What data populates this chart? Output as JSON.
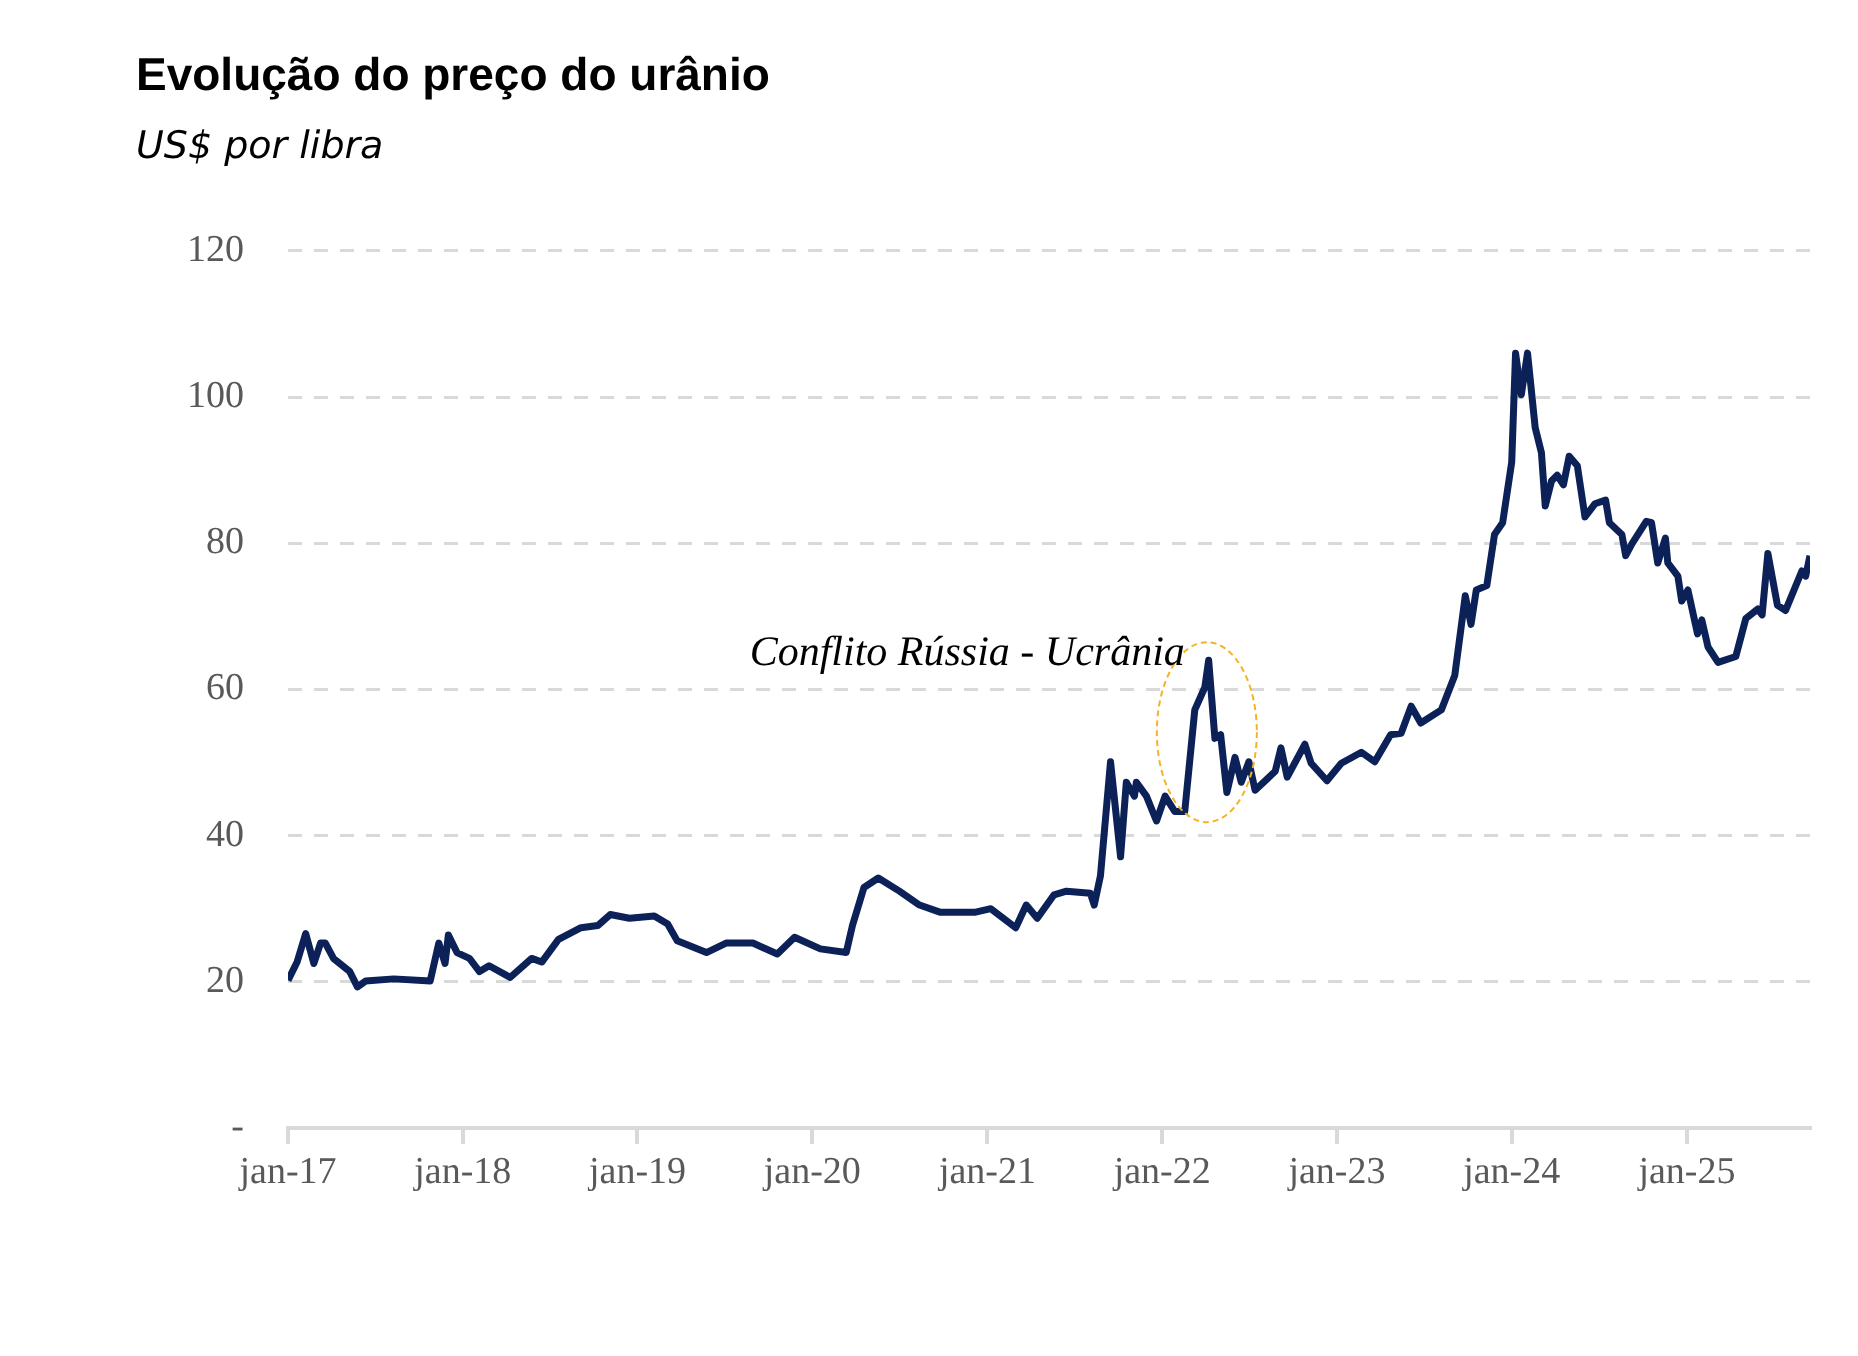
{
  "chart_data": {
    "type": "line",
    "title": "Evolução do preço do urânio",
    "subtitle": "US$ por libra",
    "x": [
      "2017-01-01",
      "2017-01-20",
      "2017-02-07",
      "2017-02-24",
      "2017-03-10",
      "2017-03-20",
      "2017-04-06",
      "2017-05-10",
      "2017-05-26",
      "2017-06-12",
      "2017-08-10",
      "2017-10-25",
      "2017-11-12",
      "2017-11-25",
      "2017-12-02",
      "2017-12-20",
      "2018-01-15",
      "2018-02-05",
      "2018-02-25",
      "2018-04-10",
      "2018-05-25",
      "2018-06-15",
      "2018-07-20",
      "2018-09-05",
      "2018-10-10",
      "2018-11-05",
      "2018-12-15",
      "2019-02-05",
      "2019-03-05",
      "2019-03-25",
      "2019-05-25",
      "2019-07-05",
      "2019-08-30",
      "2019-10-20",
      "2019-11-25",
      "2020-01-18",
      "2020-03-12",
      "2020-03-25",
      "2020-04-18",
      "2020-05-18",
      "2020-07-01",
      "2020-08-12",
      "2020-09-25",
      "2020-12-05",
      "2021-01-08",
      "2021-03-01",
      "2021-03-23",
      "2021-04-15",
      "2021-05-20",
      "2021-06-15",
      "2021-08-04",
      "2021-08-12",
      "2021-08-25",
      "2021-09-15",
      "2021-10-06",
      "2021-10-18",
      "2021-11-04",
      "2021-11-08",
      "2021-11-29",
      "2021-12-20",
      "2022-01-07",
      "2022-01-27",
      "2022-02-17",
      "2022-03-10",
      "2022-03-31",
      "2022-04-08",
      "2022-04-21",
      "2022-05-03",
      "2022-05-16",
      "2022-06-02",
      "2022-06-15",
      "2022-07-01",
      "2022-07-14",
      "2022-08-25",
      "2022-09-06",
      "2022-09-19",
      "2022-10-26",
      "2022-11-08",
      "2022-12-11",
      "2023-01-10",
      "2023-02-21",
      "2023-03-21",
      "2023-04-23",
      "2023-05-15",
      "2023-06-05",
      "2023-06-25",
      "2023-08-07",
      "2023-09-04",
      "2023-09-26",
      "2023-10-08",
      "2023-10-19",
      "2023-11-10",
      "2023-11-26",
      "2023-12-13",
      "2024-01-01",
      "2024-01-09",
      "2024-01-21",
      "2024-02-03",
      "2024-02-19",
      "2024-03-03",
      "2024-03-11",
      "2024-03-24",
      "2024-04-05",
      "2024-04-18",
      "2024-04-30",
      "2024-05-17",
      "2024-06-02",
      "2024-06-23",
      "2024-07-15",
      "2024-07-23",
      "2024-08-18",
      "2024-08-26",
      "2024-09-08",
      "2024-10-08",
      "2024-10-19",
      "2024-11-01",
      "2024-11-17",
      "2024-11-22",
      "2024-12-13",
      "2024-12-21",
      "2025-01-03",
      "2025-01-23",
      "2025-02-01",
      "2025-02-14",
      "2025-03-07",
      "2025-04-13",
      "2025-05-04",
      "2025-05-29",
      "2025-06-07",
      "2025-06-19",
      "2025-07-09",
      "2025-07-26",
      "2025-08-29",
      "2025-09-06",
      "2025-09-15"
    ],
    "series": [
      {
        "color": "#0b2157",
        "values": [
          20.2,
          22.7,
          26.6,
          22.5,
          25.3,
          25.3,
          23.2,
          21.4,
          19.3,
          20.1,
          20.4,
          20.1,
          25.3,
          22.5,
          26.4,
          24.0,
          23.2,
          21.4,
          22.2,
          20.6,
          23.2,
          22.7,
          25.8,
          27.4,
          27.7,
          29.2,
          28.7,
          29.0,
          27.9,
          25.6,
          24.0,
          25.3,
          25.3,
          23.8,
          26.1,
          24.5,
          24.0,
          27.7,
          32.9,
          34.2,
          32.4,
          30.5,
          29.5,
          29.5,
          30.0,
          27.4,
          30.5,
          28.7,
          31.9,
          32.4,
          32.1,
          30.5,
          34.5,
          50.1,
          37.1,
          47.3,
          45.4,
          47.3,
          45.4,
          42.0,
          45.4,
          43.3,
          43.3,
          57.2,
          60.3,
          64.0,
          53.3,
          53.8,
          45.9,
          50.7,
          47.3,
          50.1,
          46.2,
          48.8,
          52.0,
          48.0,
          52.5,
          49.9,
          47.5,
          49.9,
          51.4,
          50.1,
          53.8,
          54.0,
          57.7,
          55.4,
          57.2,
          61.9,
          72.8,
          68.9,
          73.6,
          74.2,
          81.2,
          82.8,
          91.1,
          106.0,
          100.3,
          106.0,
          95.8,
          92.4,
          85.1,
          88.5,
          89.3,
          88.0,
          91.9,
          90.6,
          83.6,
          85.4,
          85.9,
          82.8,
          81.2,
          78.3,
          79.9,
          83.0,
          82.8,
          77.3,
          80.7,
          77.3,
          75.5,
          72.1,
          73.6,
          67.6,
          69.5,
          65.8,
          63.7,
          64.5,
          69.7,
          71.0,
          70.2,
          78.6,
          71.5,
          70.8,
          76.2,
          75.5,
          78.3
        ]
      }
    ],
    "xlim": [
      "2017-01-01",
      "2025-09-15"
    ],
    "xticks": [
      {
        "value": "2017-01-01",
        "label": "jan-17"
      },
      {
        "value": "2018-01-01",
        "label": "jan-18"
      },
      {
        "value": "2019-01-01",
        "label": "jan-19"
      },
      {
        "value": "2020-01-01",
        "label": "jan-20"
      },
      {
        "value": "2021-01-01",
        "label": "jan-21"
      },
      {
        "value": "2022-01-01",
        "label": "jan-22"
      },
      {
        "value": "2023-01-01",
        "label": "jan-23"
      },
      {
        "value": "2024-01-01",
        "label": "jan-24"
      },
      {
        "value": "2025-01-01",
        "label": "jan-25"
      }
    ],
    "ylim": [
      0,
      120
    ],
    "yticks": [
      {
        "value": 0,
        "label": "-"
      },
      20,
      40,
      60,
      80,
      100,
      120
    ],
    "grid": "y",
    "legend": false,
    "marker": "none",
    "line_style": "solid",
    "annotations": [
      {
        "text": "Conflito Rússia - Ucrânia",
        "x": "2022-03-31",
        "y": 64.0
      }
    ]
  }
}
